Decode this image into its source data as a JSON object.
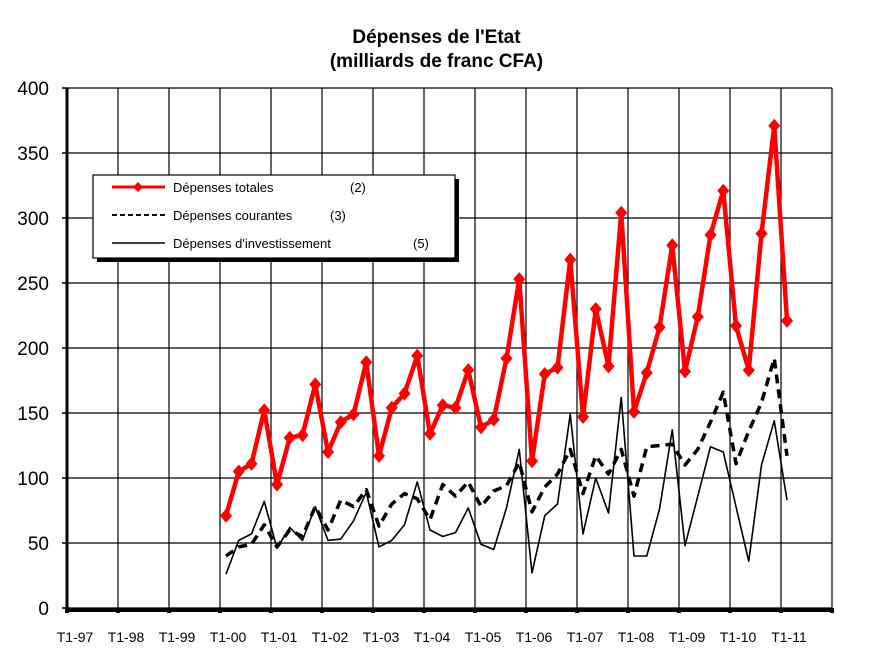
{
  "chart_data": {
    "type": "line",
    "title": "Dépenses de l'Etat",
    "subtitle": "(milliards de franc CFA)",
    "xlabel": "",
    "ylabel": "",
    "ylim": [
      0,
      400
    ],
    "yticks": [
      0,
      50,
      100,
      150,
      200,
      250,
      300,
      350,
      400
    ],
    "xtick_labels": [
      "T1-97",
      "T1-98",
      "T1-99",
      "T1-00",
      "T1-01",
      "T1-02",
      "T1-03",
      "T1-04",
      "T1-05",
      "T1-06",
      "T1-07",
      "T1-08",
      "T1-09",
      "T1-10",
      "T1-11"
    ],
    "x_start": "T1-00",
    "x_unit": "quarter",
    "grid": true,
    "legend_position": "upper-left",
    "series": [
      {
        "name": "Dépenses  totales",
        "note": "(2)",
        "color": "#ff0000",
        "style": "solid-marker",
        "values": [
          71,
          105,
          111,
          152,
          95,
          131,
          133,
          172,
          120,
          143,
          149,
          189,
          117,
          154,
          165,
          194,
          134,
          156,
          154,
          183,
          139,
          145,
          192,
          253,
          113,
          180,
          185,
          268,
          147,
          230,
          186,
          304,
          151,
          181,
          216,
          279,
          182,
          224,
          287,
          321,
          217,
          183,
          288,
          371,
          221
        ]
      },
      {
        "name": "Dépenses  courantes",
        "note": "(3)",
        "color": "#000000",
        "style": "dashed",
        "values": [
          40,
          47,
          49,
          64,
          47,
          60,
          55,
          78,
          60,
          83,
          78,
          91,
          63,
          80,
          88,
          84,
          68,
          95,
          86,
          97,
          78,
          90,
          94,
          112,
          74,
          93,
          103,
          122,
          88,
          117,
          103,
          122,
          86,
          124,
          125,
          126,
          110,
          122,
          143,
          166,
          111,
          136,
          158,
          192,
          117
        ]
      },
      {
        "name": "Dépenses  d'investissement",
        "note": "(5)",
        "color": "#000000",
        "style": "thin",
        "values": [
          26,
          52,
          57,
          82,
          46,
          62,
          52,
          78,
          52,
          53,
          67,
          89,
          47,
          52,
          64,
          97,
          60,
          55,
          58,
          77,
          49,
          45,
          77,
          122,
          27,
          71,
          80,
          149,
          57,
          100,
          73,
          162,
          40,
          40,
          76,
          137,
          48,
          86,
          124,
          120,
          78,
          36,
          110,
          144,
          83
        ]
      }
    ]
  }
}
